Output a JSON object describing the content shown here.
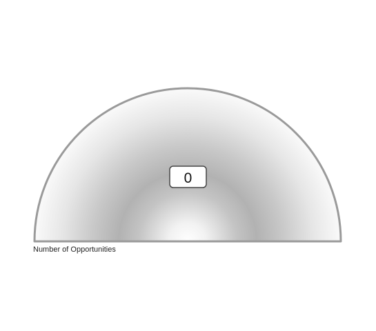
{
  "chart_data": {
    "type": "gauge",
    "value": 0,
    "value_label": "0",
    "label": "Number of Opportunities"
  },
  "colors": {
    "outline": "#9a9a9a",
    "gradient_light": "#ffffff",
    "gradient_mid": "#b4b4b4",
    "gradient_edge": "#f8f8f8",
    "value_box_border": "#444444",
    "text": "#222222"
  }
}
